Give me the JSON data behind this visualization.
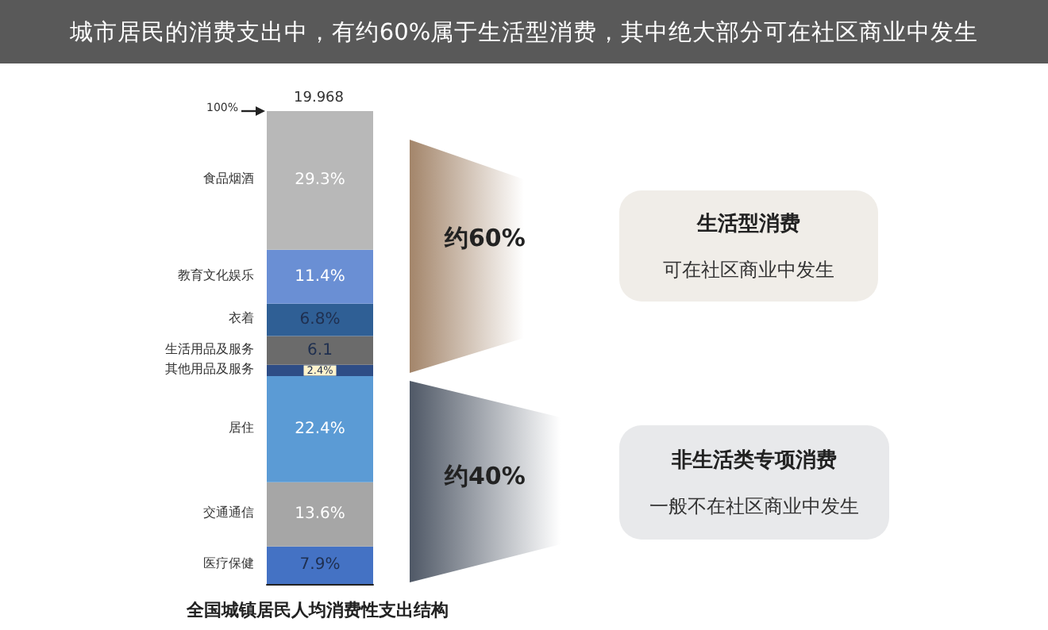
{
  "chart_data": {
    "type": "bar",
    "title": "城市居民的消费支出中，有约60%属于生活型消费，其中绝大部分可在社区商业中发生",
    "xlabel": "全国城镇居民人均消费性支出结构",
    "categories": [
      null
    ],
    "stacked": true,
    "legend": false,
    "grid": false,
    "series": [
      {
        "name": "医疗保健",
        "color": "#4472c4",
        "values": [
          7.9
        ],
        "value_labels": [
          "7.9%"
        ]
      },
      {
        "name": "交通通信",
        "color": "#a6a6a6",
        "values": [
          13.6
        ],
        "value_labels": [
          "13.6%"
        ]
      },
      {
        "name": "居住",
        "color": "#5b9bd5",
        "values": [
          22.4
        ],
        "value_labels": [
          "22.4%"
        ]
      },
      {
        "name": "其他用品及服务",
        "color": "#2e4d86",
        "values": [
          2.4
        ],
        "value_labels": [
          "2.4%"
        ]
      },
      {
        "name": "生活用品及服务",
        "color": "#6b6b6b",
        "values": [
          6.1
        ],
        "value_labels": [
          "6.1"
        ]
      },
      {
        "name": "衣着",
        "color": "#2f5f95",
        "values": [
          6.8
        ],
        "value_labels": [
          "6.8%"
        ]
      },
      {
        "name": "教育文化娱乐",
        "color": "#6a8fd4",
        "values": [
          11.4
        ],
        "value_labels": [
          "11.4%"
        ]
      },
      {
        "name": "食品烟酒",
        "color": "#b8b8b8",
        "values": [
          29.3
        ],
        "value_labels": [
          "29.3%"
        ]
      }
    ],
    "annotations": [
      "100%",
      "19.968",
      "约60%",
      "约40%",
      "生活型消费",
      "可在社区商业中发生",
      "非生活类专项消费",
      "一般不在社区商业中发生"
    ]
  }
}
